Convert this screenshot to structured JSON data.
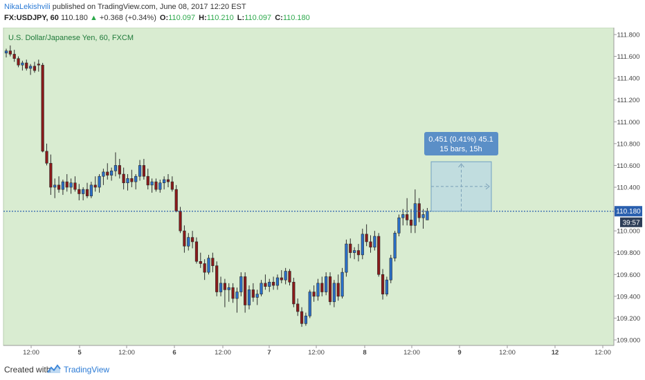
{
  "header": {
    "author": "NikaLekishvili",
    "published": "published on TradingView.com, June 08, 2017 12:20 EST",
    "symbol": "FX:USDJPY, 60",
    "last": "110.180",
    "change": "+0.368 (+0.34%)",
    "open_label": "O:",
    "open": "110.097",
    "high_label": "H:",
    "high": "110.210",
    "low_label": "L:",
    "low": "110.097",
    "close_label": "C:",
    "close": "110.180"
  },
  "chart_data": {
    "type": "candlestick",
    "title": "U.S. Dollar/Japanese Yen, 60, FXCM",
    "ylim": [
      109.0,
      111.8
    ],
    "y_ticks": [
      "111.800",
      "111.600",
      "111.400",
      "111.200",
      "111.000",
      "110.800",
      "110.600",
      "110.400",
      "110.200",
      "110.000",
      "109.800",
      "109.600",
      "109.400",
      "109.200",
      "109.000"
    ],
    "x_ticks": [
      "12:00",
      "5",
      "12:00",
      "6",
      "12:00",
      "7",
      "12:00",
      "8",
      "12:00",
      "9",
      "12:00",
      "12",
      "12:00"
    ],
    "current_price": "110.180",
    "countdown": "39:57",
    "colors": {
      "up": "#2a6fc9",
      "down": "#8b1a1a",
      "background": "#d9ecd1",
      "price_line": "#2a5fae"
    },
    "candles": [
      [
        111.63,
        111.67,
        111.59,
        111.65
      ],
      [
        111.65,
        111.7,
        111.6,
        111.62
      ],
      [
        111.62,
        111.66,
        111.55,
        111.58
      ],
      [
        111.58,
        111.6,
        111.5,
        111.52
      ],
      [
        111.52,
        111.56,
        111.47,
        111.54
      ],
      [
        111.54,
        111.57,
        111.47,
        111.49
      ],
      [
        111.49,
        111.53,
        111.43,
        111.51
      ],
      [
        111.51,
        111.55,
        111.45,
        111.47
      ],
      [
        111.53,
        111.57,
        111.46,
        111.52
      ],
      [
        111.52,
        111.54,
        110.72,
        110.73
      ],
      [
        110.73,
        110.8,
        110.6,
        110.62
      ],
      [
        110.62,
        110.7,
        110.33,
        110.4
      ],
      [
        110.4,
        110.48,
        110.3,
        110.42
      ],
      [
        110.42,
        110.5,
        110.35,
        110.38
      ],
      [
        110.38,
        110.47,
        110.33,
        110.45
      ],
      [
        110.45,
        110.52,
        110.36,
        110.4
      ],
      [
        110.4,
        110.48,
        110.34,
        110.44
      ],
      [
        110.44,
        110.5,
        110.36,
        110.38
      ],
      [
        110.38,
        110.43,
        110.28,
        110.34
      ],
      [
        110.34,
        110.4,
        110.28,
        110.38
      ],
      [
        110.38,
        110.44,
        110.3,
        110.32
      ],
      [
        110.32,
        110.45,
        110.3,
        110.42
      ],
      [
        110.42,
        110.5,
        110.36,
        110.4
      ],
      [
        110.4,
        110.52,
        110.35,
        110.5
      ],
      [
        110.5,
        110.57,
        110.42,
        110.54
      ],
      [
        110.54,
        110.62,
        110.47,
        110.51
      ],
      [
        110.51,
        110.58,
        110.46,
        110.55
      ],
      [
        110.55,
        110.72,
        110.5,
        110.6
      ],
      [
        110.6,
        110.66,
        110.48,
        110.52
      ],
      [
        110.52,
        110.58,
        110.38,
        110.44
      ],
      [
        110.44,
        110.52,
        110.37,
        110.48
      ],
      [
        110.48,
        110.56,
        110.4,
        110.45
      ],
      [
        110.45,
        110.52,
        110.38,
        110.5
      ],
      [
        110.5,
        110.65,
        110.46,
        110.6
      ],
      [
        110.6,
        110.66,
        110.47,
        110.5
      ],
      [
        110.5,
        110.57,
        110.38,
        110.42
      ],
      [
        110.42,
        110.48,
        110.35,
        110.45
      ],
      [
        110.45,
        110.48,
        110.36,
        110.38
      ],
      [
        110.38,
        110.47,
        110.35,
        110.44
      ],
      [
        110.44,
        110.5,
        110.38,
        110.47
      ],
      [
        110.47,
        110.52,
        110.4,
        110.45
      ],
      [
        110.45,
        110.5,
        110.36,
        110.38
      ],
      [
        110.38,
        110.42,
        110.17,
        110.18
      ],
      [
        110.18,
        110.22,
        109.98,
        110.0
      ],
      [
        110.0,
        110.05,
        109.8,
        109.86
      ],
      [
        109.86,
        109.98,
        109.82,
        109.94
      ],
      [
        109.94,
        110.0,
        109.84,
        109.9
      ],
      [
        109.9,
        109.94,
        109.7,
        109.72
      ],
      [
        109.72,
        109.8,
        109.66,
        109.7
      ],
      [
        109.7,
        109.74,
        109.55,
        109.62
      ],
      [
        109.62,
        109.78,
        109.6,
        109.75
      ],
      [
        109.75,
        109.8,
        109.62,
        109.68
      ],
      [
        109.68,
        109.72,
        109.4,
        109.44
      ],
      [
        109.44,
        109.58,
        109.4,
        109.52
      ],
      [
        109.52,
        109.56,
        109.3,
        109.46
      ],
      [
        109.46,
        109.52,
        109.35,
        109.48
      ],
      [
        109.48,
        109.52,
        109.34,
        109.38
      ],
      [
        109.38,
        109.48,
        109.25,
        109.44
      ],
      [
        109.44,
        109.62,
        109.4,
        109.58
      ],
      [
        109.58,
        109.62,
        109.25,
        109.32
      ],
      [
        109.32,
        109.5,
        109.28,
        109.46
      ],
      [
        109.46,
        109.52,
        109.35,
        109.39
      ],
      [
        109.39,
        109.46,
        109.32,
        109.42
      ],
      [
        109.42,
        109.55,
        109.4,
        109.52
      ],
      [
        109.52,
        109.6,
        109.46,
        109.49
      ],
      [
        109.49,
        109.56,
        109.44,
        109.53
      ],
      [
        109.53,
        109.58,
        109.46,
        109.5
      ],
      [
        109.5,
        109.6,
        109.46,
        109.57
      ],
      [
        109.57,
        109.64,
        109.52,
        109.55
      ],
      [
        109.55,
        109.66,
        109.51,
        109.63
      ],
      [
        109.63,
        109.65,
        109.5,
        109.53
      ],
      [
        109.53,
        109.57,
        109.3,
        109.33
      ],
      [
        109.33,
        109.38,
        109.22,
        109.26
      ],
      [
        109.26,
        109.3,
        109.12,
        109.15
      ],
      [
        109.15,
        109.25,
        109.13,
        109.22
      ],
      [
        109.22,
        109.46,
        109.2,
        109.44
      ],
      [
        109.44,
        109.5,
        109.35,
        109.4
      ],
      [
        109.4,
        109.56,
        109.36,
        109.52
      ],
      [
        109.52,
        109.58,
        109.4,
        109.44
      ],
      [
        109.44,
        109.62,
        109.41,
        109.58
      ],
      [
        109.58,
        109.62,
        109.32,
        109.35
      ],
      [
        109.35,
        109.55,
        109.3,
        109.52
      ],
      [
        109.52,
        109.6,
        109.36,
        109.4
      ],
      [
        109.4,
        109.66,
        109.38,
        109.62
      ],
      [
        109.62,
        109.92,
        109.58,
        109.88
      ],
      [
        109.88,
        109.93,
        109.75,
        109.8
      ],
      [
        109.8,
        109.85,
        109.74,
        109.82
      ],
      [
        109.82,
        109.88,
        109.72,
        109.78
      ],
      [
        109.78,
        110.02,
        109.74,
        109.97
      ],
      [
        109.97,
        110.06,
        109.86,
        109.9
      ],
      [
        109.9,
        109.96,
        109.8,
        109.85
      ],
      [
        109.85,
        110.0,
        109.82,
        109.95
      ],
      [
        109.95,
        109.98,
        109.58,
        109.6
      ],
      [
        109.6,
        109.65,
        109.37,
        109.42
      ],
      [
        109.42,
        109.58,
        109.4,
        109.55
      ],
      [
        109.55,
        109.78,
        109.52,
        109.75
      ],
      [
        109.75,
        110.0,
        109.72,
        109.98
      ],
      [
        109.98,
        110.15,
        109.95,
        110.12
      ],
      [
        110.12,
        110.2,
        110.05,
        110.15
      ],
      [
        110.15,
        110.3,
        110.05,
        110.1
      ],
      [
        110.1,
        110.2,
        109.98,
        110.05
      ],
      [
        110.05,
        110.38,
        109.98,
        110.25
      ],
      [
        110.25,
        110.3,
        110.08,
        110.12
      ],
      [
        110.12,
        110.2,
        110.02,
        110.15
      ],
      [
        110.1,
        110.21,
        110.1,
        110.18
      ]
    ],
    "measure_tooltip": {
      "line1": "0.451 (0.41%) 45.1",
      "line2": "15 bars, 15h"
    }
  },
  "footer": {
    "created_with": "Created with",
    "brand": "TradingView"
  }
}
